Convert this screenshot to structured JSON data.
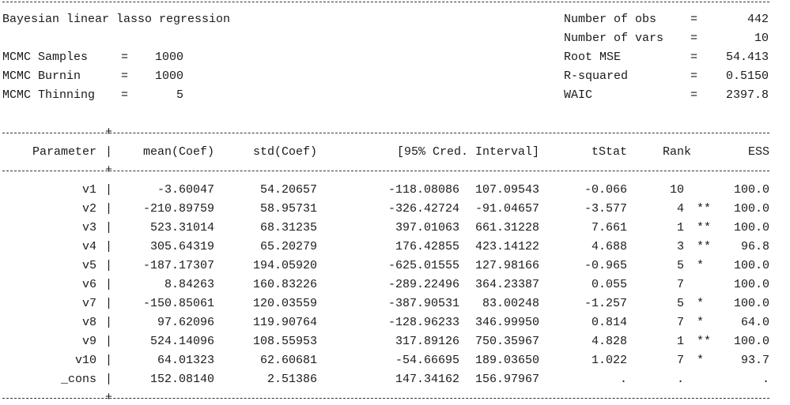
{
  "header": {
    "title": "Bayesian linear lasso regression",
    "left": [
      {
        "label": "MCMC Samples",
        "eq": "=",
        "value": "1000"
      },
      {
        "label": "MCMC Burnin",
        "eq": "=",
        "value": "1000"
      },
      {
        "label": "MCMC Thinning",
        "eq": "=",
        "value": "5"
      }
    ],
    "right": [
      {
        "label": "Number of obs",
        "eq": "=",
        "value": "442"
      },
      {
        "label": "Number of vars",
        "eq": "=",
        "value": "10"
      },
      {
        "label": "Root MSE",
        "eq": "=",
        "value": "54.413"
      },
      {
        "label": "R-squared",
        "eq": "=",
        "value": "0.5150"
      },
      {
        "label": "WAIC",
        "eq": "=",
        "value": "2397.8"
      }
    ]
  },
  "table": {
    "columns": {
      "parameter": "Parameter",
      "mean": "mean(Coef)",
      "std": "std(Coef)",
      "interval": "[95% Cred. Interval]",
      "tstat": "tStat",
      "rank": "Rank",
      "ess": "ESS"
    },
    "rows": [
      {
        "param": "v1",
        "mean": "-3.60047",
        "std": "54.20657",
        "lo": "-118.08086",
        "hi": "107.09543",
        "tstat": "-0.066",
        "rank": "10",
        "sig": "",
        "ess": "100.0"
      },
      {
        "param": "v2",
        "mean": "-210.89759",
        "std": "58.95731",
        "lo": "-326.42724",
        "hi": "-91.04657",
        "tstat": "-3.577",
        "rank": "4",
        "sig": "**",
        "ess": "100.0"
      },
      {
        "param": "v3",
        "mean": "523.31014",
        "std": "68.31235",
        "lo": "397.01063",
        "hi": "661.31228",
        "tstat": "7.661",
        "rank": "1",
        "sig": "**",
        "ess": "100.0"
      },
      {
        "param": "v4",
        "mean": "305.64319",
        "std": "65.20279",
        "lo": "176.42855",
        "hi": "423.14122",
        "tstat": "4.688",
        "rank": "3",
        "sig": "**",
        "ess": "96.8"
      },
      {
        "param": "v5",
        "mean": "-187.17307",
        "std": "194.05920",
        "lo": "-625.01555",
        "hi": "127.98166",
        "tstat": "-0.965",
        "rank": "5",
        "sig": "*",
        "ess": "100.0"
      },
      {
        "param": "v6",
        "mean": "8.84263",
        "std": "160.83226",
        "lo": "-289.22496",
        "hi": "364.23387",
        "tstat": "0.055",
        "rank": "7",
        "sig": "",
        "ess": "100.0"
      },
      {
        "param": "v7",
        "mean": "-150.85061",
        "std": "120.03559",
        "lo": "-387.90531",
        "hi": "83.00248",
        "tstat": "-1.257",
        "rank": "5",
        "sig": "*",
        "ess": "100.0"
      },
      {
        "param": "v8",
        "mean": "97.62096",
        "std": "119.90764",
        "lo": "-128.96233",
        "hi": "346.99950",
        "tstat": "0.814",
        "rank": "7",
        "sig": "*",
        "ess": "64.0"
      },
      {
        "param": "v9",
        "mean": "524.14096",
        "std": "108.55953",
        "lo": "317.89126",
        "hi": "750.35967",
        "tstat": "4.828",
        "rank": "1",
        "sig": "**",
        "ess": "100.0"
      },
      {
        "param": "v10",
        "mean": "64.01323",
        "std": "62.60681",
        "lo": "-54.66695",
        "hi": "189.03650",
        "tstat": "1.022",
        "rank": "7",
        "sig": "*",
        "ess": "93.7"
      },
      {
        "param": "_cons",
        "mean": "152.08140",
        "std": "2.51386",
        "lo": "147.34162",
        "hi": "156.97967",
        "tstat": ".",
        "rank": ".",
        "sig": "",
        "ess": "."
      }
    ]
  }
}
